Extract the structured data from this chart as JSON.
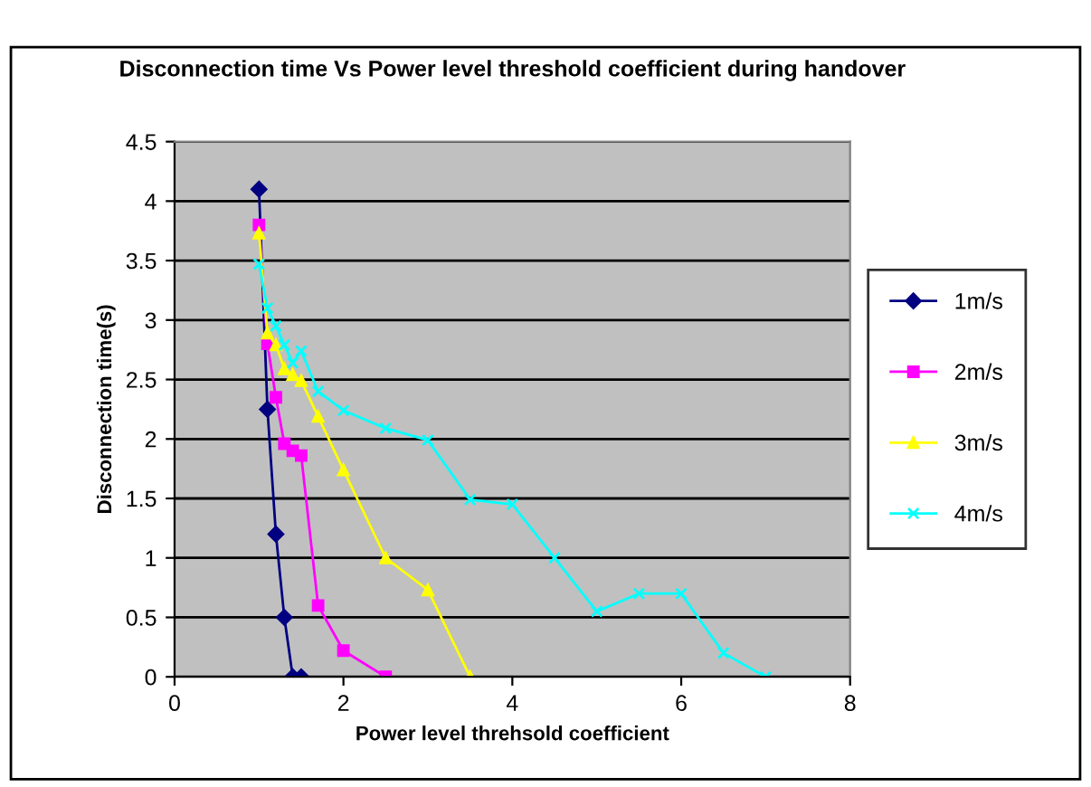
{
  "chart_data": {
    "type": "line",
    "title": "Disconnection time Vs Power level threshold coefficient during handover",
    "xlabel": "Power level threhsold coefficient",
    "ylabel": "Disconnection time(s)",
    "xlim": [
      0,
      8
    ],
    "xticks": [
      0,
      2,
      4,
      6,
      8
    ],
    "ylim": [
      0,
      4.5
    ],
    "yticks": [
      0,
      0.5,
      1,
      1.5,
      2,
      2.5,
      3,
      3.5,
      4,
      4.5
    ],
    "grid": "y",
    "legend": "right",
    "line_style": "solid",
    "series": [
      {
        "name": "1m/s",
        "color": "#000080",
        "marker": "diamond",
        "x": [
          1,
          1.1,
          1.2,
          1.3,
          1.4,
          1.5
        ],
        "values": [
          4.1,
          2.25,
          1.2,
          0.5,
          0,
          0
        ]
      },
      {
        "name": "2m/s",
        "color": "#ff00ff",
        "marker": "square",
        "x": [
          1,
          1.1,
          1.2,
          1.3,
          1.4,
          1.5,
          1.7,
          2,
          2.5
        ],
        "values": [
          3.8,
          2.8,
          2.35,
          1.96,
          1.9,
          1.86,
          0.6,
          0.22,
          0
        ]
      },
      {
        "name": "3m/s",
        "color": "#ffff00",
        "marker": "triangle",
        "x": [
          1,
          1.1,
          1.2,
          1.3,
          1.4,
          1.5,
          1.7,
          2,
          2.5,
          3,
          3.5
        ],
        "values": [
          3.73,
          2.89,
          2.79,
          2.59,
          2.54,
          2.49,
          2.19,
          1.74,
          1,
          0.73,
          0
        ]
      },
      {
        "name": "4m/s",
        "color": "#00ffff",
        "marker": "cross",
        "x": [
          1,
          1.1,
          1.2,
          1.3,
          1.4,
          1.5,
          1.7,
          2,
          2.5,
          3,
          3.5,
          4,
          4.5,
          5,
          5.5,
          6,
          6.5,
          7
        ],
        "values": [
          3.47,
          3.1,
          2.95,
          2.79,
          2.64,
          2.74,
          2.4,
          2.24,
          2.09,
          1.99,
          1.49,
          1.45,
          1,
          0.55,
          0.7,
          0.7,
          0.2,
          0
        ]
      }
    ]
  }
}
